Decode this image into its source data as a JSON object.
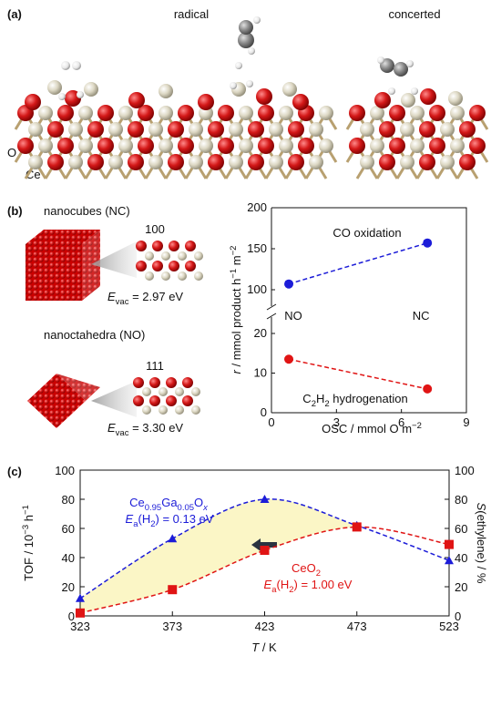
{
  "panel_a": {
    "label": "(a)",
    "titles": [
      "radical",
      "concerted"
    ],
    "atoms": [
      "O",
      "Ce"
    ]
  },
  "panel_b": {
    "label": "(b)",
    "nanocubes": {
      "name": "nanocubes (NC)",
      "facet": "100",
      "energy": [
        {
          "text": "E",
          "style": "italic"
        },
        {
          "text": "vac",
          "style": "sub"
        },
        {
          "text": " = 2.97 eV"
        }
      ]
    },
    "nanoctahedra": {
      "name": "nanoctahedra (NO)",
      "facet": "111",
      "energy": [
        {
          "text": "E",
          "style": "italic"
        },
        {
          "text": "vac",
          "style": "sub"
        },
        {
          "text": " = 3.30 eV"
        }
      ]
    }
  },
  "panel_c": {
    "label": "(c)"
  },
  "chart_data": [
    {
      "type": "line",
      "x": [
        0.8,
        7.2
      ],
      "point_labels": [
        "NO",
        "NC"
      ],
      "xlim": [
        0,
        9
      ],
      "xticks": [
        0,
        3,
        6,
        9
      ],
      "ylim": [
        0,
        200
      ],
      "y_break": [
        20,
        100
      ],
      "yticks": [
        0,
        10,
        20,
        100,
        150,
        200
      ],
      "x_label": [
        {
          "text": "OSC / mmol O m"
        },
        {
          "text": "−2",
          "style": "sup"
        }
      ],
      "y_label": [
        {
          "text": "r",
          "style": "italic"
        },
        {
          "text": " / mmol product h"
        },
        {
          "text": "−1",
          "style": "sup"
        },
        {
          "text": " m"
        },
        {
          "text": "−2",
          "style": "sup"
        }
      ],
      "series": [
        {
          "name": [
            {
              "text": "CO oxidation"
            }
          ],
          "color": "#1c1cd8",
          "values": [
            107,
            157
          ]
        },
        {
          "name": [
            {
              "text": "C"
            },
            {
              "text": "2",
              "style": "sub"
            },
            {
              "text": "H"
            },
            {
              "text": "2",
              "style": "sub"
            },
            {
              "text": " hydrogenation"
            }
          ],
          "color": "#e01414",
          "values": [
            13.5,
            6
          ]
        }
      ]
    },
    {
      "type": "line",
      "smooth": true,
      "x": [
        323,
        373,
        423,
        473,
        523
      ],
      "xlim": [
        323,
        523
      ],
      "xticks": [
        323,
        373,
        423,
        473,
        523
      ],
      "ylim": [
        0,
        100
      ],
      "yticks": [
        0,
        20,
        40,
        60,
        80,
        100
      ],
      "y2lim": [
        0,
        100
      ],
      "y2ticks": [
        0,
        20,
        40,
        60,
        80,
        100
      ],
      "x_label": [
        {
          "text": "T",
          "style": "italic"
        },
        {
          "text": " / K"
        }
      ],
      "y_label": [
        {
          "text": "TOF / 10"
        },
        {
          "text": "−3",
          "style": "sup"
        },
        {
          "text": " h"
        },
        {
          "text": "−1",
          "style": "sup"
        }
      ],
      "y2_label": [
        {
          "text": "S",
          "style": "italic"
        },
        {
          "text": "(ethylene) / %"
        }
      ],
      "shade": "#fbf6c6",
      "series": [
        {
          "name": [
            {
              "text": "Ce"
            },
            {
              "text": "0.95",
              "style": "sub"
            },
            {
              "text": "Ga"
            },
            {
              "text": "0.05",
              "style": "sub"
            },
            {
              "text": "O"
            },
            {
              "text": "x",
              "style": "sub italic"
            }
          ],
          "annotation": [
            {
              "text": "E",
              "style": "italic"
            },
            {
              "text": "a",
              "style": "sub"
            },
            {
              "text": "(H"
            },
            {
              "text": "2",
              "style": "sub"
            },
            {
              "text": ") = 0.13 eV"
            }
          ],
          "color": "#1c1cd8",
          "marker": "triangle",
          "values": [
            12,
            53,
            80,
            62,
            38
          ]
        },
        {
          "name": [
            {
              "text": "CeO"
            },
            {
              "text": "2",
              "style": "sub"
            }
          ],
          "annotation": [
            {
              "text": "E",
              "style": "italic"
            },
            {
              "text": "a",
              "style": "sub"
            },
            {
              "text": "(H"
            },
            {
              "text": "2",
              "style": "sub"
            },
            {
              "text": ") = 1.00 eV"
            }
          ],
          "color": "#e01414",
          "marker": "square",
          "values": [
            2,
            18,
            45,
            61,
            49
          ]
        }
      ]
    }
  ]
}
